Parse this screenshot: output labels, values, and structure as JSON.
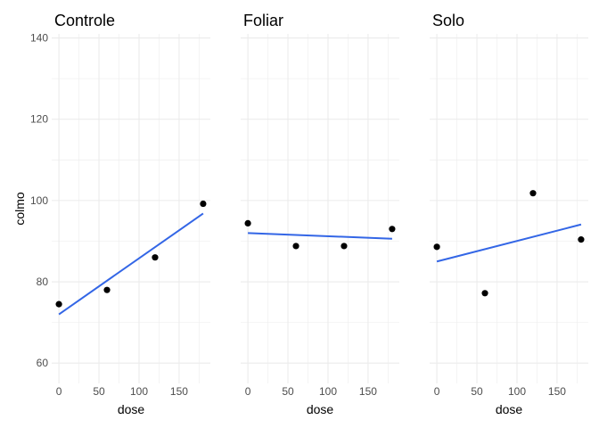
{
  "chart_data": {
    "type": "scatter",
    "ylabel": "colmo",
    "ylim": [
      55,
      141
    ],
    "xlim": [
      -9,
      189
    ],
    "y_ticks": [
      60,
      80,
      100,
      120,
      140
    ],
    "x_ticks": [
      0,
      50,
      100,
      150
    ],
    "grid": true,
    "fit": "linear",
    "fit_color": "#3366e6",
    "point_color": "#000000",
    "panels": [
      {
        "title": "Controle",
        "xlabel": "dose",
        "points": [
          {
            "x": 0,
            "y": 74.5
          },
          {
            "x": 60,
            "y": 78
          },
          {
            "x": 120,
            "y": 86
          },
          {
            "x": 180,
            "y": 99.2
          }
        ],
        "fit": {
          "x": [
            0,
            180
          ],
          "y": [
            72,
            96.8
          ]
        }
      },
      {
        "title": "Foliar",
        "xlabel": "dose",
        "points": [
          {
            "x": 0,
            "y": 94.4
          },
          {
            "x": 60,
            "y": 88.8
          },
          {
            "x": 120,
            "y": 88.8
          },
          {
            "x": 180,
            "y": 93
          }
        ],
        "fit": {
          "x": [
            0,
            180
          ],
          "y": [
            92,
            90.6
          ]
        }
      },
      {
        "title": "Solo",
        "xlabel": "dose",
        "points": [
          {
            "x": 0,
            "y": 88.6
          },
          {
            "x": 60,
            "y": 77.2
          },
          {
            "x": 120,
            "y": 101.8
          },
          {
            "x": 180,
            "y": 90.4
          }
        ],
        "fit": {
          "x": [
            0,
            180
          ],
          "y": [
            85,
            94.1
          ]
        }
      }
    ]
  }
}
